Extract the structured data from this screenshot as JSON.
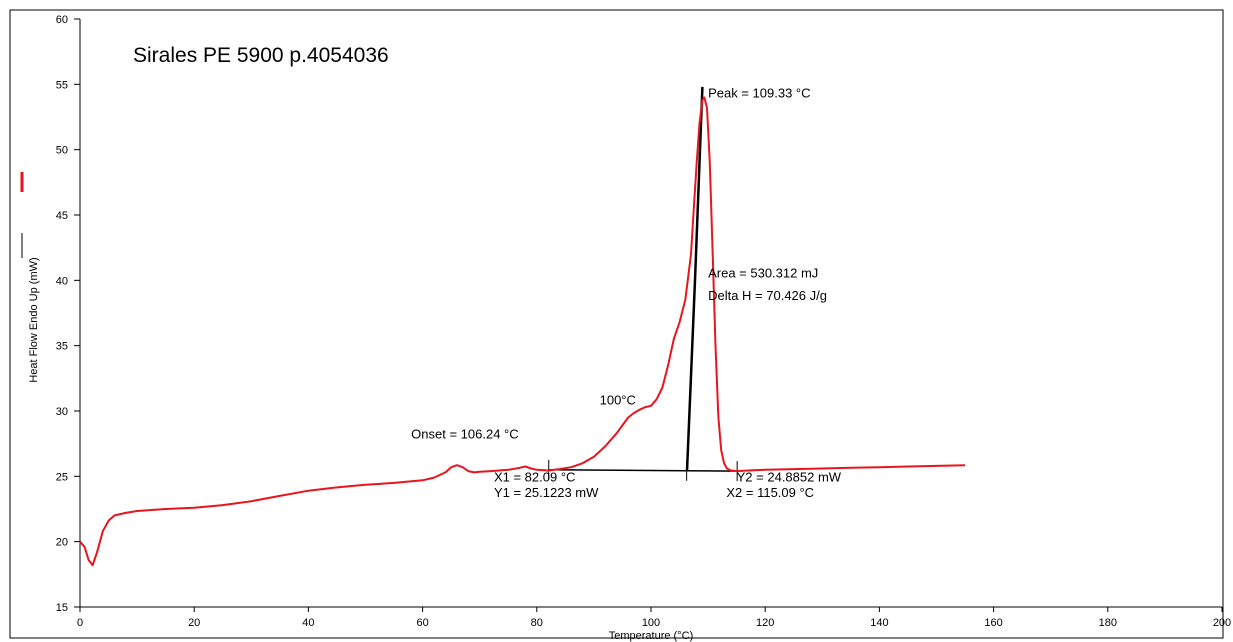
{
  "chart_data": {
    "type": "line",
    "title": "Sirales PE 5900 p.4054036",
    "xlabel": "Temperature (°C)",
    "ylabel": "Heat Flow Endo Up (mW)",
    "xlim": [
      0,
      200
    ],
    "ylim": [
      15,
      60
    ],
    "xticks": [
      0,
      20,
      40,
      60,
      80,
      100,
      120,
      140,
      160,
      180,
      200
    ],
    "xtick_labels": [
      "0",
      "20",
      "40",
      "60",
      "80",
      "100",
      "120",
      "140",
      "160",
      "180",
      "200"
    ],
    "yticks": [
      15,
      20,
      25,
      30,
      35,
      40,
      45,
      50,
      55,
      60
    ],
    "ytick_labels": [
      "15",
      "20",
      "25",
      "30",
      "35",
      "40",
      "45",
      "50",
      "55",
      "60"
    ],
    "grid": false,
    "series": [
      {
        "color": "#e8141e",
        "x": [
          0,
          0.8,
          1.5,
          2.2,
          3,
          4,
          5,
          6,
          8,
          10,
          15,
          20,
          25,
          30,
          35,
          40,
          45,
          50,
          55,
          60,
          62,
          64,
          65,
          66,
          67,
          68,
          69,
          70,
          72,
          75,
          77,
          78,
          79,
          80,
          82,
          84,
          86,
          88,
          90,
          92,
          94,
          95,
          96,
          97,
          98,
          99,
          100,
          101,
          102,
          103,
          104,
          105,
          106,
          107,
          107.5,
          108,
          108.5,
          109,
          109.33,
          109.8,
          110.3,
          110.8,
          111.3,
          111.8,
          112.3,
          112.8,
          113.3,
          114,
          115,
          117,
          120,
          125,
          130,
          135,
          140,
          145,
          150,
          155
        ],
        "y": [
          20,
          19.6,
          18.6,
          18.2,
          19.2,
          20.8,
          21.6,
          22.0,
          22.2,
          22.35,
          22.5,
          22.6,
          22.8,
          23.1,
          23.5,
          23.9,
          24.15,
          24.35,
          24.5,
          24.7,
          24.9,
          25.3,
          25.7,
          25.85,
          25.7,
          25.4,
          25.3,
          25.35,
          25.4,
          25.5,
          25.65,
          25.75,
          25.6,
          25.5,
          25.45,
          25.55,
          25.7,
          26.0,
          26.5,
          27.3,
          28.3,
          28.9,
          29.5,
          29.85,
          30.1,
          30.3,
          30.4,
          30.9,
          31.8,
          33.5,
          35.5,
          36.8,
          38.5,
          42.0,
          45.5,
          49.0,
          52.0,
          53.8,
          54.0,
          53.2,
          49.0,
          42.0,
          35.0,
          29.5,
          27.0,
          26.0,
          25.6,
          25.45,
          25.4,
          25.45,
          25.5,
          25.55,
          25.6,
          25.65,
          25.7,
          25.75,
          25.8,
          25.85
        ]
      }
    ],
    "integration_box": {
      "color": "#000000",
      "baseline": {
        "x": [
          82.09,
          115.09
        ],
        "y": [
          25.5,
          25.4
        ]
      },
      "onset_tangent": {
        "x": [
          106.3,
          107.7,
          109.0
        ],
        "y": [
          25.4,
          40.0,
          54.8
        ]
      },
      "marker_x": [
        82.09,
        106.24,
        115.09
      ]
    },
    "annotations": [
      {
        "text": "Peak = 109.33 °C",
        "x": 110.0,
        "y": 54.0
      },
      {
        "text": "Area = 530.312 mJ",
        "x": 110.0,
        "y": 40.2
      },
      {
        "text": "Delta H = 70.426 J/g",
        "x": 110.0,
        "y": 38.5
      },
      {
        "text": "100°C",
        "x": 91.0,
        "y": 30.5
      },
      {
        "text": "Onset = 106.24 °C",
        "x": 58.0,
        "y": 27.9
      },
      {
        "text": "X1 = 82.09 °C",
        "x": 72.5,
        "y": 24.6
      },
      {
        "text": "Y1 = 25.1223 mW",
        "x": 72.5,
        "y": 23.4
      },
      {
        "text": "Y2 = 24.8852 mW",
        "x": 115.0,
        "y": 24.6
      },
      {
        "text": "X2 = 115.09 °C",
        "x": 113.2,
        "y": 23.4
      }
    ]
  }
}
